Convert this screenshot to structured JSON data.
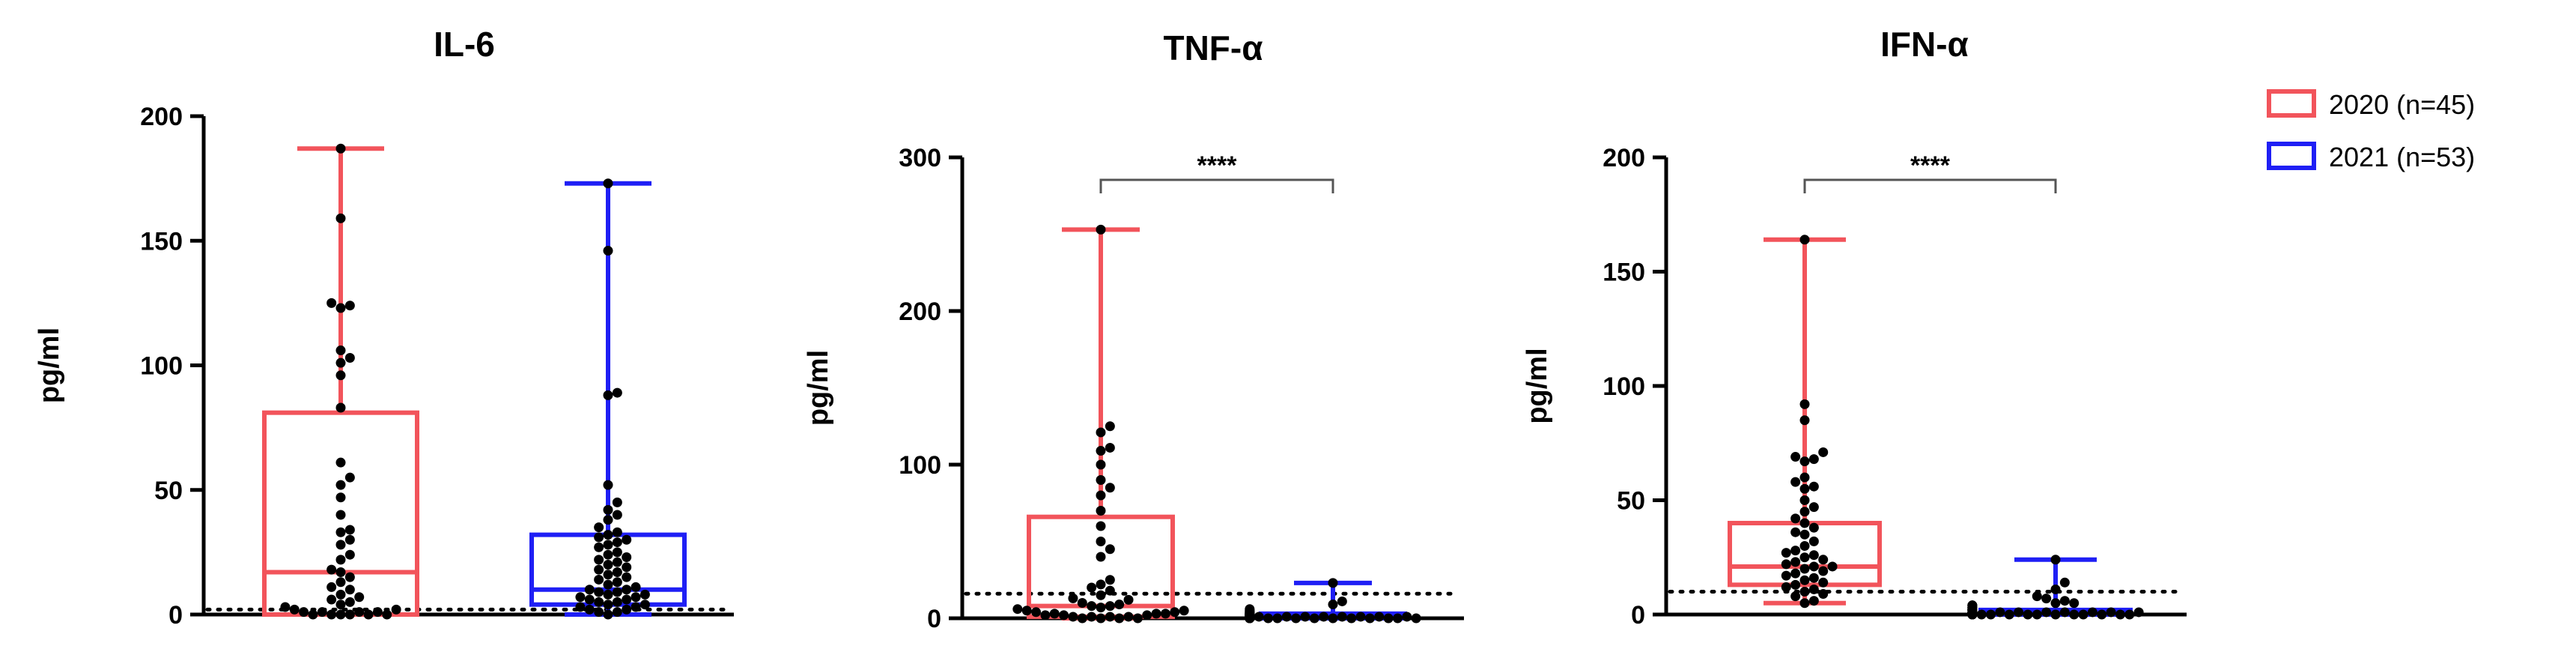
{
  "chart_data": [
    {
      "type": "box",
      "title": "IL-6",
      "ylabel": "pg/ml",
      "ylim": [
        0,
        200
      ],
      "yticks": [
        0,
        50,
        100,
        150,
        200
      ],
      "threshold": 2,
      "significance": "",
      "groups": [
        {
          "name": "2020 (n=45)",
          "color": "#f2545b",
          "min": 0,
          "q1": 0,
          "median": 17,
          "q3": 81,
          "max": 187,
          "points": [
            187,
            159,
            125,
            124,
            123,
            106,
            103,
            101,
            96,
            83,
            61,
            55,
            52,
            47,
            40,
            34,
            33,
            30,
            28,
            24,
            22,
            18,
            17,
            15,
            13,
            11,
            10,
            8,
            7,
            6,
            5,
            4,
            3,
            2,
            2,
            1,
            1,
            1,
            1,
            0,
            0,
            0,
            0,
            0,
            0
          ]
        },
        {
          "name": "2021 (n=53)",
          "color": "#1f1ff5",
          "min": 0,
          "q1": 4,
          "median": 10,
          "q3": 32,
          "max": 173,
          "points": [
            173,
            146,
            89,
            88,
            52,
            45,
            42,
            40,
            38,
            35,
            33,
            32,
            31,
            30,
            29,
            28,
            27,
            25,
            24,
            23,
            22,
            21,
            20,
            19,
            18,
            17,
            16,
            15,
            14,
            13,
            12,
            11,
            10,
            10,
            9,
            9,
            8,
            8,
            7,
            7,
            6,
            6,
            5,
            5,
            4,
            4,
            3,
            3,
            2,
            2,
            1,
            1,
            0
          ]
        }
      ]
    },
    {
      "type": "box",
      "title": "TNF-α",
      "ylabel": "pg/ml",
      "ylim": [
        0,
        300
      ],
      "yticks": [
        0,
        100,
        200,
        300
      ],
      "threshold": 16,
      "significance": "****",
      "groups": [
        {
          "name": "2020 (n=45)",
          "color": "#f2545b",
          "min": 0,
          "q1": 1,
          "median": 8,
          "q3": 66,
          "max": 253,
          "points": [
            253,
            125,
            121,
            111,
            109,
            100,
            90,
            85,
            80,
            70,
            60,
            50,
            45,
            40,
            25,
            22,
            20,
            18,
            15,
            13,
            12,
            10,
            9,
            8,
            8,
            7,
            6,
            5,
            5,
            4,
            4,
            3,
            3,
            3,
            2,
            2,
            2,
            1,
            1,
            1,
            1,
            0,
            0,
            0,
            0
          ]
        },
        {
          "name": "2021 (n=53)",
          "color": "#1f1ff5",
          "min": 0,
          "q1": 0,
          "median": 1,
          "q3": 3,
          "max": 23,
          "points": [
            23,
            11,
            9,
            6,
            5,
            5,
            4,
            4,
            4,
            3,
            3,
            3,
            3,
            3,
            3,
            2,
            2,
            2,
            2,
            2,
            2,
            2,
            2,
            2,
            1,
            1,
            1,
            1,
            1,
            1,
            1,
            1,
            1,
            1,
            1,
            1,
            1,
            1,
            0,
            0,
            0,
            0,
            0,
            0,
            0,
            0,
            0,
            0,
            0,
            0,
            0,
            0,
            0
          ]
        }
      ]
    },
    {
      "type": "box",
      "title": "IFN-α",
      "ylabel": "pg/ml",
      "ylim": [
        0,
        200
      ],
      "yticks": [
        0,
        50,
        100,
        150,
        200
      ],
      "threshold": 10,
      "significance": "****",
      "groups": [
        {
          "name": "2020 (n=45)",
          "color": "#f2545b",
          "min": 5,
          "q1": 13,
          "median": 21,
          "q3": 40,
          "max": 164,
          "points": [
            164,
            92,
            85,
            71,
            69,
            68,
            67,
            60,
            58,
            56,
            55,
            50,
            47,
            45,
            42,
            40,
            38,
            36,
            35,
            32,
            30,
            28,
            27,
            26,
            25,
            24,
            23,
            22,
            21,
            21,
            20,
            19,
            18,
            17,
            16,
            15,
            14,
            13,
            12,
            11,
            10,
            9,
            8,
            6,
            5
          ]
        },
        {
          "name": "2021 (n=53)",
          "color": "#1f1ff5",
          "min": 0,
          "q1": 0,
          "median": 1,
          "q3": 2,
          "max": 24,
          "points": [
            24,
            14,
            11,
            8,
            7,
            6,
            5,
            5,
            4,
            4,
            4,
            3,
            3,
            3,
            3,
            2,
            2,
            2,
            2,
            2,
            2,
            2,
            2,
            1,
            1,
            1,
            1,
            1,
            1,
            1,
            1,
            1,
            1,
            1,
            1,
            1,
            1,
            0,
            0,
            0,
            0,
            0,
            0,
            0,
            0,
            0,
            0,
            0,
            0,
            0,
            0,
            0,
            0
          ]
        }
      ]
    }
  ],
  "legend": {
    "placement": "top-right",
    "items": [
      {
        "label": "2020 (n=45)",
        "color": "#f2545b"
      },
      {
        "label": "2021 (n=53)",
        "color": "#1f1ff5"
      }
    ]
  }
}
